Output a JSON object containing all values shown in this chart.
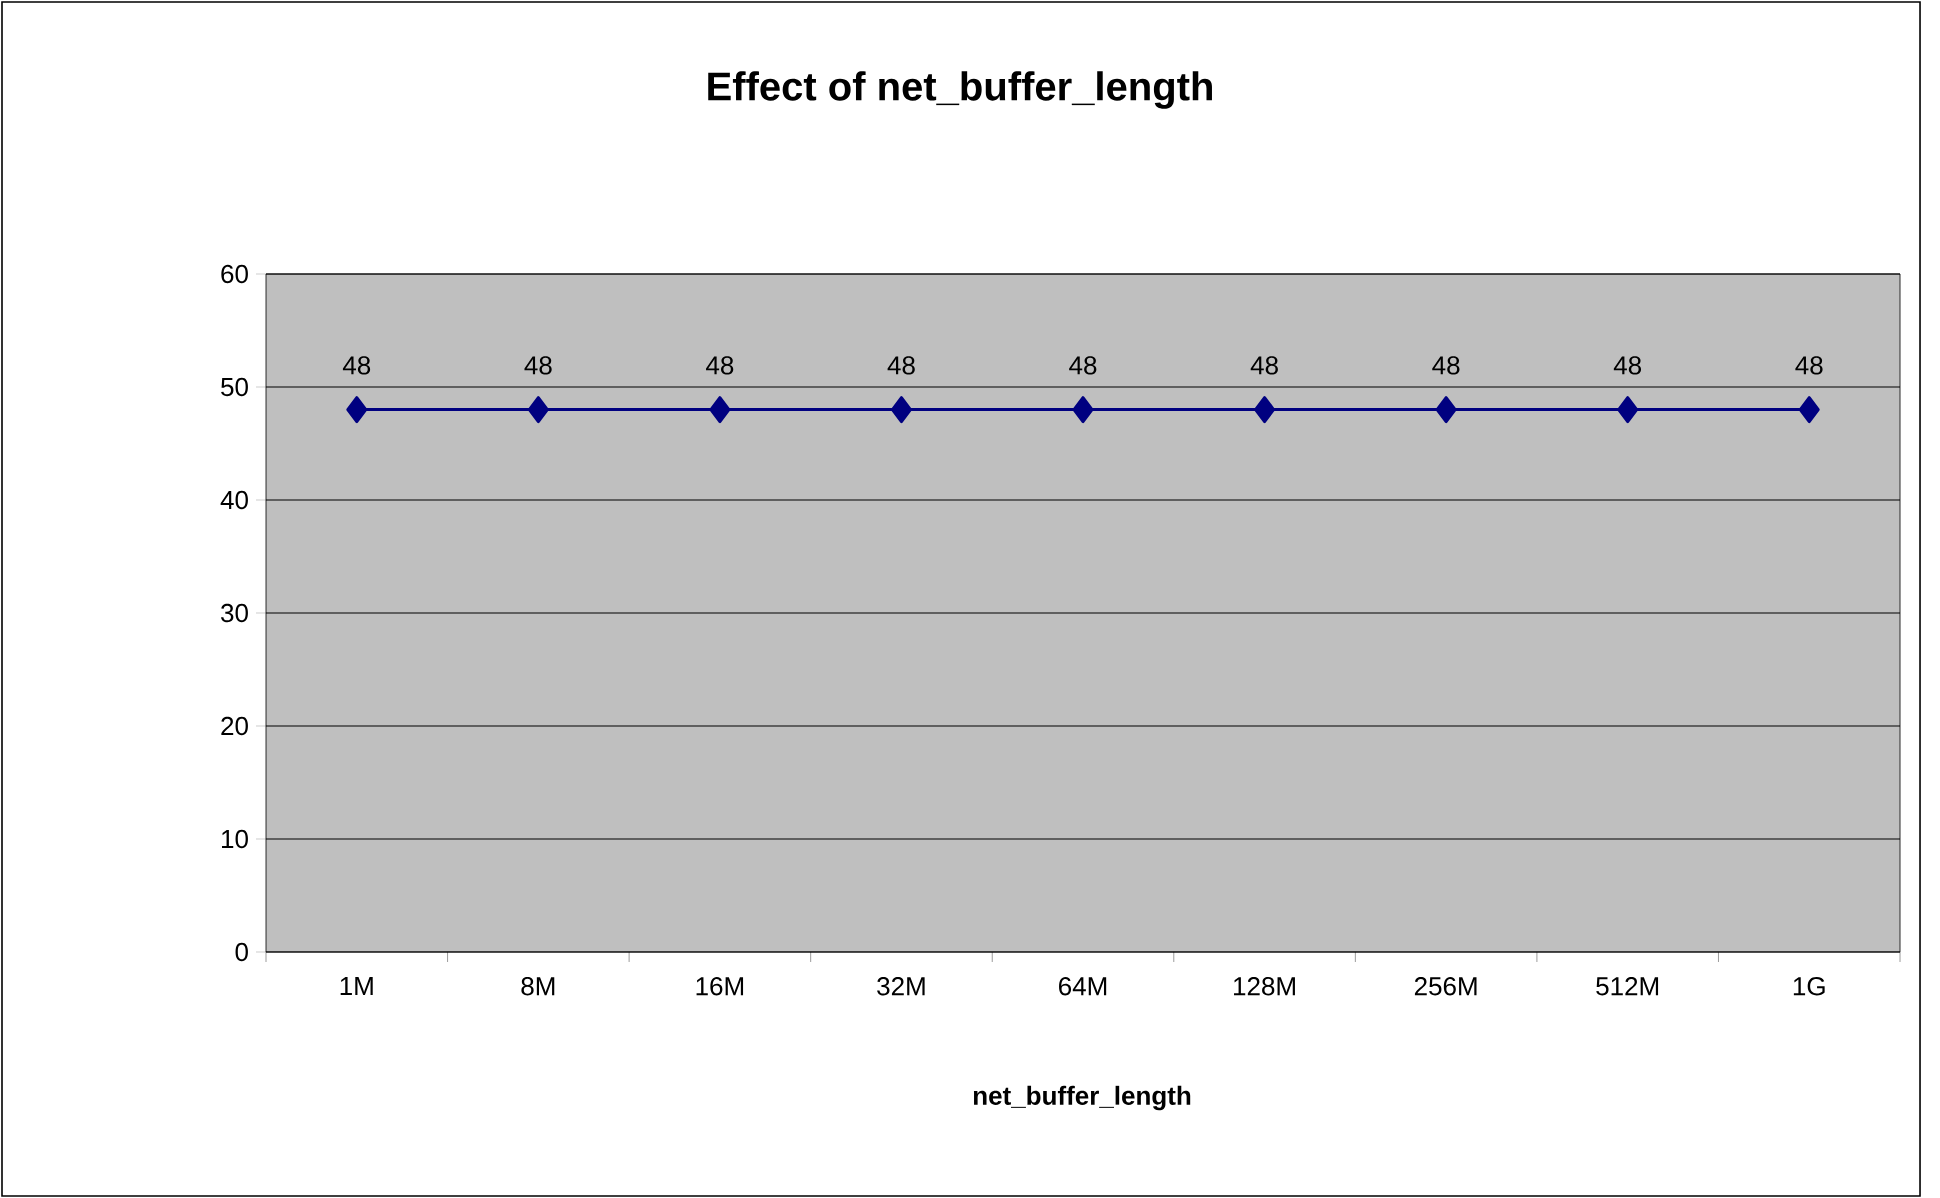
{
  "chart_data": {
    "type": "line",
    "title": "Effect of net_buffer_length",
    "xlabel": "net_buffer_length",
    "categories": [
      "1M",
      "8M",
      "16M",
      "32M",
      "64M",
      "128M",
      "256M",
      "512M",
      "1G"
    ],
    "values": [
      48,
      48,
      48,
      48,
      48,
      48,
      48,
      48,
      48
    ],
    "color": "#000080",
    "marker": "diamond",
    "data_labels": true,
    "ylim": [
      0,
      60
    ],
    "yticks": [
      0,
      10,
      20,
      30,
      40,
      50,
      60
    ],
    "grid": "y"
  }
}
